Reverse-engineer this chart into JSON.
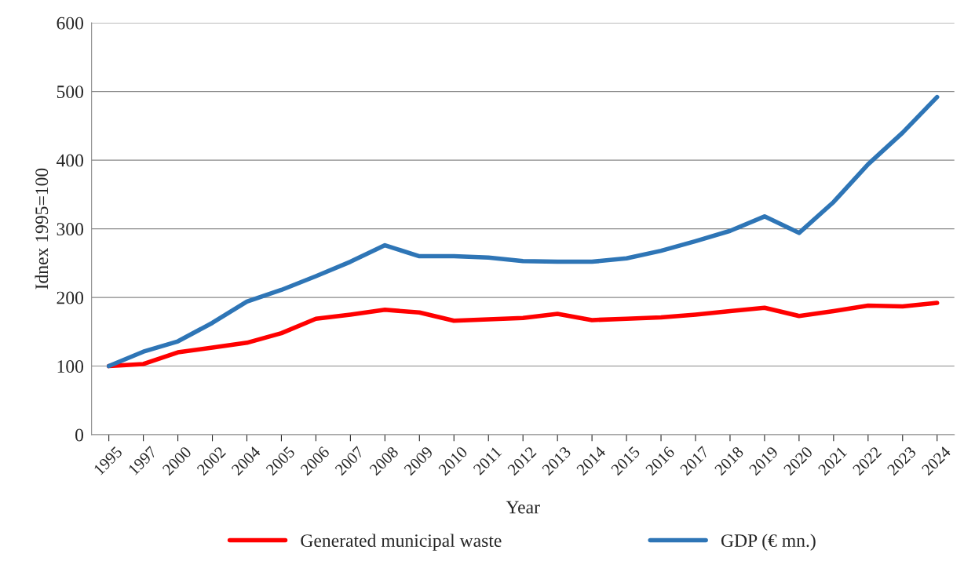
{
  "chart_data": {
    "type": "line",
    "xlabel": "Year",
    "ylabel": "Idnex 1995=100",
    "categories": [
      "1995",
      "1997",
      "2000",
      "2002",
      "2004",
      "2005",
      "2006",
      "2007",
      "2008",
      "2009",
      "2010",
      "2011",
      "2012",
      "2013",
      "2014",
      "2015",
      "2016",
      "2017",
      "2018",
      "2019",
      "2020",
      "2021",
      "2022",
      "2023",
      "2024"
    ],
    "series": [
      {
        "name": "Generated municipal waste",
        "color": "#ff0000",
        "values": [
          100,
          103,
          120,
          127,
          134,
          148,
          169,
          175,
          182,
          178,
          166,
          168,
          170,
          176,
          167,
          169,
          171,
          175,
          180,
          185,
          173,
          180,
          188,
          187,
          192
        ]
      },
      {
        "name": "GDP (€ mn.)",
        "color": "#2e75b6",
        "values": [
          100,
          121,
          136,
          163,
          194,
          211,
          231,
          252,
          276,
          260,
          260,
          258,
          253,
          252,
          252,
          257,
          268,
          282,
          297,
          318,
          294,
          339,
          394,
          440,
          492
        ]
      }
    ],
    "ylim": [
      0,
      600
    ],
    "yticks": [
      0,
      100,
      200,
      300,
      400,
      500,
      600
    ],
    "grid": "y",
    "legend": "bottom",
    "line_style": "solid",
    "marker": "none"
  }
}
